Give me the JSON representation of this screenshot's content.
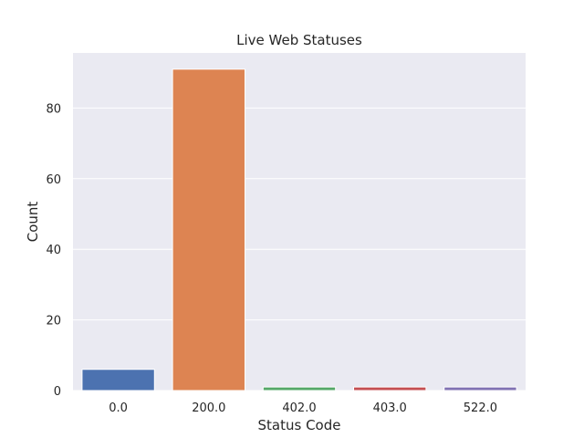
{
  "chart_data": {
    "type": "bar",
    "title": "Live Web Statuses",
    "xlabel": "Status Code",
    "ylabel": "Count",
    "categories": [
      "0.0",
      "200.0",
      "402.0",
      "403.0",
      "522.0"
    ],
    "values": [
      6,
      91,
      1,
      1,
      1
    ],
    "ylim": [
      0,
      95.6
    ],
    "yticks": [
      0,
      20,
      40,
      60,
      80
    ],
    "grid": true,
    "colors": [
      "#4c72b0",
      "#dd8452",
      "#55a868",
      "#c44e52",
      "#8172b3"
    ],
    "background": "#eaeaf2"
  }
}
